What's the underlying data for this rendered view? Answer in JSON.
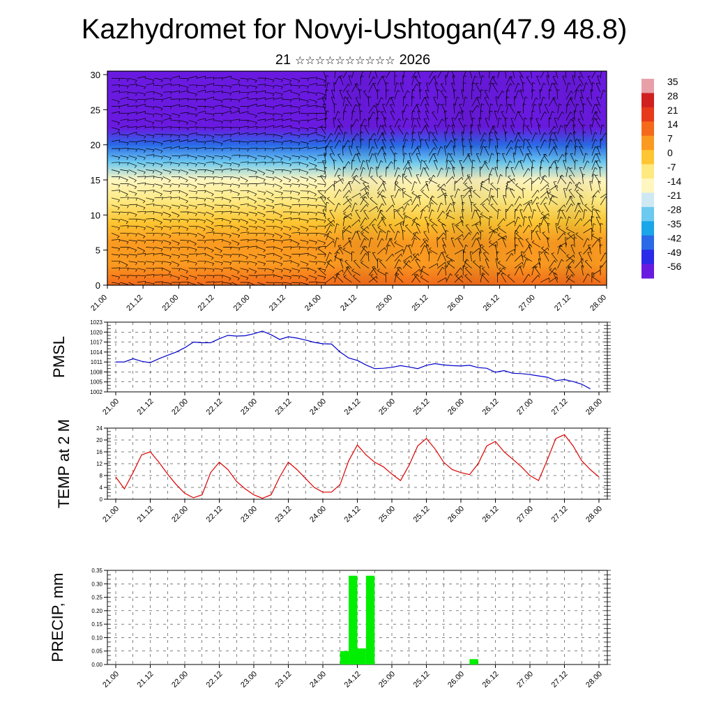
{
  "title": "Kazhydromet for Novyi-Ushtogan(47.9 48.8)",
  "subtitle": {
    "day": "21",
    "month_glyphs": "☆☆☆☆☆☆☆☆☆☆",
    "year": "2026"
  },
  "x_tick_labels": [
    "21.00",
    "21.12",
    "22.00",
    "22.12",
    "23.00",
    "23.12",
    "24.00",
    "24.12",
    "25.00",
    "25.12",
    "26.00",
    "26.12",
    "27.00",
    "27.12",
    "28.00"
  ],
  "colors": {
    "pmsl_line": "#0000cc",
    "temp_line": "#dd0000",
    "precip_bar": "#00ee00"
  },
  "chart_data": [
    {
      "type": "heatmap",
      "name": "cross_section",
      "ylim": [
        0,
        30.5
      ],
      "yticks": [
        0,
        5,
        10,
        15,
        20,
        25,
        30
      ],
      "colorbar_labels": [
        "35",
        "28",
        "21",
        "14",
        "7",
        "0",
        "-7",
        "-14",
        "-21",
        "-28",
        "-35",
        "-42",
        "-49",
        "-56"
      ],
      "colorbar_colors": [
        "#e8a0a8",
        "#d02020",
        "#e63a1a",
        "#f46a1a",
        "#fb9a20",
        "#fdc632",
        "#fee980",
        "#fff6c0",
        "#cfe9f4",
        "#6cc9f0",
        "#1aa6e8",
        "#2a6ae8",
        "#2a2ae8",
        "#6a1ae0"
      ],
      "value_bands": [
        {
          "z": 0,
          "value": 16
        },
        {
          "z": 3,
          "value": 10
        },
        {
          "z": 6,
          "value": 5
        },
        {
          "z": 9,
          "value": 0
        },
        {
          "z": 12,
          "value": -7
        },
        {
          "z": 15,
          "value": -14
        },
        {
          "z": 17.5,
          "value": -28
        },
        {
          "z": 20,
          "value": -42
        },
        {
          "z": 22.5,
          "value": -56
        },
        {
          "z": 26,
          "value": -56
        },
        {
          "z": 30.5,
          "value": -60
        }
      ]
    },
    {
      "type": "line",
      "name": "PMSL",
      "ylabel": "PMSL",
      "ylim": [
        1002,
        1023
      ],
      "yticks": [
        "1002",
        "1005",
        "1008",
        "1011",
        "1014",
        "1017",
        "1020",
        "1023"
      ],
      "x_step_hours": 3,
      "values": [
        1011,
        1011,
        1012,
        1011.2,
        1010.8,
        1012,
        1013,
        1014,
        1015.3,
        1017,
        1016.8,
        1016.8,
        1018,
        1019,
        1018.8,
        1018.9,
        1019.5,
        1020.3,
        1019.2,
        1017.8,
        1018.6,
        1018.2,
        1017.6,
        1016.9,
        1016.5,
        1016.4,
        1014,
        1012.2,
        1011.5,
        1010.1,
        1009,
        1009.1,
        1009.4,
        1009.9,
        1009.5,
        1009,
        1010,
        1010.5,
        1010.1,
        1009.9,
        1009.8,
        1010,
        1009.3,
        1009.1,
        1007.9,
        1008.4,
        1007.6,
        1007.5,
        1007.2,
        1006.8,
        1006.4,
        1005.4,
        1005.7,
        1005.1,
        1004.3,
        1002.9
      ]
    },
    {
      "type": "line",
      "name": "TEMP at 2 M",
      "ylabel": "TEMP at 2 M",
      "ylim": [
        0,
        24
      ],
      "yticks": [
        "0",
        "4",
        "8",
        "12",
        "16",
        "20",
        "24"
      ],
      "x_step_hours": 3,
      "values": [
        7.5,
        3.5,
        9,
        15,
        16,
        12.5,
        8.5,
        5,
        2,
        0.5,
        1.5,
        9,
        12.5,
        10,
        6,
        3.5,
        1.5,
        0.3,
        1.5,
        7.5,
        12.5,
        10,
        7,
        4,
        2.4,
        2.4,
        5,
        13,
        18.3,
        15,
        12.5,
        11,
        8.5,
        6.3,
        11.5,
        18,
        20.5,
        17,
        12.5,
        10,
        9,
        8.3,
        12,
        18,
        19.5,
        16,
        13.5,
        11,
        8,
        6.3,
        13.2,
        20.5,
        21.8,
        18,
        13,
        10,
        7.5
      ]
    },
    {
      "type": "bar",
      "name": "PRECIP, mm",
      "ylabel": "PRECIP, mm",
      "ylim": [
        0,
        0.35
      ],
      "yticks": [
        "0.00",
        "0.05",
        "0.10",
        "0.15",
        "0.20",
        "0.25",
        "0.30",
        "0.35"
      ],
      "x_step_hours": 3,
      "bars": [
        {
          "t_hours": 78,
          "value": 0.05
        },
        {
          "t_hours": 81,
          "value": 0.33
        },
        {
          "t_hours": 84,
          "value": 0.06
        },
        {
          "t_hours": 87,
          "value": 0.33
        },
        {
          "t_hours": 123,
          "value": 0.02
        }
      ]
    }
  ]
}
